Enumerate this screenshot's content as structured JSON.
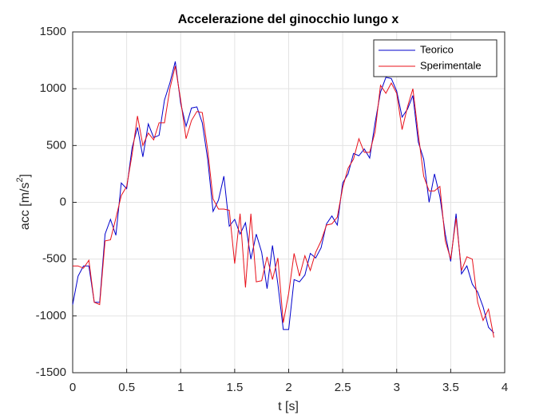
{
  "chart_data": {
    "type": "line",
    "title": "Accelerazione del ginocchio lungo x",
    "xlabel": "t [s]",
    "ylabel": {
      "text": "acc [m/s",
      "sup": "2",
      "end": "]"
    },
    "x": [
      0,
      0.05,
      0.1,
      0.15,
      0.2,
      0.25,
      0.3,
      0.35,
      0.4,
      0.45,
      0.5,
      0.55,
      0.6,
      0.65,
      0.7,
      0.75,
      0.8,
      0.85,
      0.9,
      0.95,
      1.0,
      1.05,
      1.1,
      1.15,
      1.2,
      1.25,
      1.3,
      1.35,
      1.4,
      1.45,
      1.5,
      1.55,
      1.6,
      1.65,
      1.7,
      1.75,
      1.8,
      1.85,
      1.9,
      1.95,
      2.0,
      2.05,
      2.1,
      2.15,
      2.2,
      2.25,
      2.3,
      2.35,
      2.4,
      2.45,
      2.5,
      2.55,
      2.6,
      2.65,
      2.7,
      2.75,
      2.8,
      2.85,
      2.9,
      2.95,
      3.0,
      3.05,
      3.1,
      3.15,
      3.2,
      3.25,
      3.3,
      3.35,
      3.4,
      3.45,
      3.5,
      3.55,
      3.6,
      3.65,
      3.7,
      3.75,
      3.8,
      3.85,
      3.9
    ],
    "series": [
      {
        "name": "Teorico",
        "color": "#0000cc",
        "values": [
          -900,
          -650,
          -560,
          -560,
          -880,
          -880,
          -280,
          -150,
          -290,
          170,
          120,
          480,
          660,
          400,
          690,
          570,
          590,
          900,
          1050,
          1240,
          870,
          670,
          830,
          840,
          700,
          380,
          -80,
          20,
          230,
          -210,
          -150,
          -280,
          -180,
          -500,
          -280,
          -440,
          -760,
          -380,
          -720,
          -1120,
          -1120,
          -680,
          -700,
          -640,
          -450,
          -490,
          -400,
          -190,
          -120,
          -200,
          170,
          250,
          430,
          410,
          470,
          390,
          700,
          970,
          1100,
          1090,
          980,
          750,
          820,
          940,
          530,
          380,
          0,
          250,
          50,
          -280,
          -520,
          -100,
          -630,
          -560,
          -720,
          -790,
          -920,
          -1100,
          -1150
        ]
      },
      {
        "name": "Sperimentale",
        "color": "#e8101a",
        "values": [
          -560,
          -560,
          -580,
          -510,
          -880,
          -900,
          -340,
          -330,
          -140,
          60,
          140,
          420,
          760,
          500,
          610,
          550,
          700,
          700,
          1000,
          1200,
          900,
          560,
          720,
          800,
          790,
          460,
          30,
          -60,
          -60,
          -70,
          -540,
          -100,
          -750,
          -100,
          -700,
          -690,
          -480,
          -680,
          -490,
          -1060,
          -800,
          -450,
          -650,
          -470,
          -600,
          -440,
          -340,
          -200,
          -190,
          -130,
          130,
          300,
          380,
          560,
          440,
          440,
          620,
          1030,
          960,
          1050,
          960,
          640,
          840,
          1000,
          600,
          230,
          100,
          100,
          140,
          -340,
          -500,
          -140,
          -600,
          -480,
          -500,
          -880,
          -1040,
          -940,
          -1190
        ]
      }
    ],
    "xlim": [
      0,
      4
    ],
    "xticks": [
      0,
      0.5,
      1,
      1.5,
      2,
      2.5,
      3,
      3.5,
      4
    ],
    "ylim": [
      -1500,
      1500
    ],
    "yticks": [
      -1500,
      -1000,
      -500,
      0,
      500,
      1000,
      1500
    ],
    "grid": true,
    "legend": "northeast"
  }
}
